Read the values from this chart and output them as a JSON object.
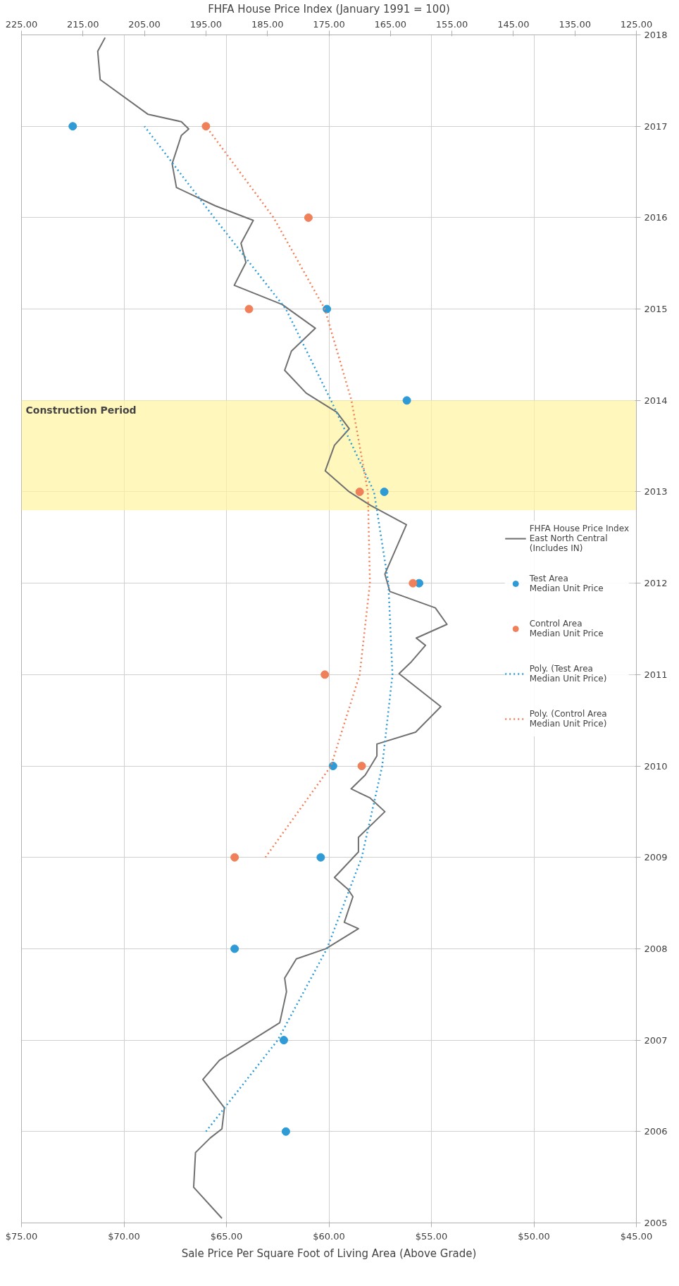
{
  "chart_data": {
    "type": "scatter",
    "orientation": "horizontal",
    "marker": "circle",
    "grid": true,
    "legend": "right",
    "xlabel": "Sale Price Per Square Foot of Living Area (Above Grade)",
    "x2label": "FHFA House Price Index (January 1991 = 100)",
    "xlim": [
      75,
      45
    ],
    "xticks": [
      {
        "value": 75,
        "label": "$75.00"
      },
      {
        "value": 70,
        "label": "$70.00"
      },
      {
        "value": 65,
        "label": "$65.00"
      },
      {
        "value": 60,
        "label": "$60.00"
      },
      {
        "value": 55,
        "label": "$55.00"
      },
      {
        "value": 50,
        "label": "$50.00"
      },
      {
        "value": 45,
        "label": "$45.00"
      }
    ],
    "x2lim": [
      225,
      125
    ],
    "x2ticks": [
      {
        "value": 225,
        "label": "225.00"
      },
      {
        "value": 215,
        "label": "215.00"
      },
      {
        "value": 205,
        "label": "205.00"
      },
      {
        "value": 195,
        "label": "195.00"
      },
      {
        "value": 185,
        "label": "185.00"
      },
      {
        "value": 175,
        "label": "175.00"
      },
      {
        "value": 165,
        "label": "165.00"
      },
      {
        "value": 155,
        "label": "155.00"
      },
      {
        "value": 145,
        "label": "145.00"
      },
      {
        "value": 135,
        "label": "135.00"
      },
      {
        "value": 125,
        "label": "125.00"
      }
    ],
    "ylim": [
      2005,
      2018
    ],
    "yticks": [
      2005,
      2006,
      2007,
      2008,
      2009,
      2010,
      2011,
      2012,
      2013,
      2014,
      2015,
      2016,
      2017,
      2018
    ],
    "bands": [
      {
        "axis": "y",
        "from": 2012.8,
        "to": 2014.0,
        "label": "Construction Period",
        "color": "#fff3a0"
      }
    ],
    "series": [
      {
        "name": "FHFA House Price Index\nEast North Central\n(Includes IN)",
        "type": "line",
        "marker": "none",
        "axis": "x2",
        "color": "#707070",
        "x": [
          2005.05,
          2005.39,
          2005.77,
          2005.93,
          2006.03,
          2006.26,
          2006.57,
          2006.78,
          2007.01,
          2007.19,
          2007.53,
          2007.68,
          2007.89,
          2008.0,
          2008.22,
          2008.29,
          2008.57,
          2008.65,
          2008.78,
          2009.06,
          2009.22,
          2009.5,
          2009.65,
          2009.75,
          2009.9,
          2010.11,
          2010.24,
          2010.37,
          2010.65,
          2011.01,
          2011.14,
          2011.32,
          2011.4,
          2011.55,
          2011.73,
          2011.91,
          2012.1,
          2012.64,
          2012.85,
          2013.0,
          2013.23,
          2013.51,
          2013.69,
          2013.87,
          2014.08,
          2014.33,
          2014.54,
          2014.79,
          2015.05,
          2015.26,
          2015.51,
          2015.72,
          2015.97,
          2016.13,
          2016.33,
          2016.59,
          2016.9,
          2016.97,
          2017.05,
          2017.13,
          2017.51,
          2017.82,
          2017.97
        ],
        "values": [
          192.4,
          197.0,
          196.7,
          194.3,
          192.4,
          192.0,
          195.5,
          192.8,
          187.3,
          183.0,
          181.9,
          182.2,
          180.3,
          175.5,
          170.2,
          172.5,
          171.1,
          171.9,
          174.1,
          170.2,
          170.2,
          165.9,
          168.3,
          171.4,
          169.1,
          167.2,
          167.2,
          160.9,
          156.8,
          163.6,
          161.6,
          159.3,
          160.8,
          155.8,
          157.7,
          165.1,
          165.9,
          162.4,
          168.2,
          171.7,
          175.6,
          174.1,
          171.7,
          173.7,
          178.7,
          182.2,
          181.1,
          177.2,
          182.6,
          190.4,
          188.5,
          189.3,
          187.3,
          193.5,
          199.8,
          200.5,
          199.0,
          197.8,
          199.0,
          204.4,
          212.2,
          212.6,
          211.4
        ]
      },
      {
        "name": "Test Area\nMedian Unit Price",
        "color": "#2e9bd6",
        "x": [
          2006,
          2007,
          2008,
          2009,
          2010,
          2012,
          2013,
          2014,
          2015,
          2017
        ],
        "values": [
          62.1,
          62.2,
          64.6,
          60.4,
          59.8,
          55.6,
          57.3,
          56.2,
          60.1,
          72.5
        ]
      },
      {
        "name": "Control Area\nMedian Unit Price",
        "color": "#f0805a",
        "x": [
          2009,
          2010,
          2011,
          2012,
          2013,
          2015,
          2016,
          2017
        ],
        "values": [
          64.6,
          58.4,
          60.2,
          55.9,
          58.5,
          63.9,
          61.0,
          66.0
        ]
      },
      {
        "name": "Poly. (Test Area\nMedian Unit Price)",
        "type": "line",
        "marker": "none",
        "line_style": "dotted",
        "color": "#2e9bd6",
        "x": [
          2006,
          2007,
          2008,
          2009,
          2010,
          2011,
          2012,
          2013,
          2014,
          2015,
          2016,
          2017
        ],
        "values": [
          66.0,
          62.5,
          60.1,
          58.4,
          57.4,
          56.9,
          57.1,
          57.8,
          59.9,
          62.1,
          65.6,
          69.0
        ]
      },
      {
        "name": "Poly. (Control Area\nMedian Unit Price)",
        "type": "line",
        "marker": "none",
        "line_style": "dotted",
        "color": "#f0805a",
        "x": [
          2009,
          2010,
          2011,
          2012,
          2013,
          2014,
          2015,
          2016,
          2017
        ],
        "values": [
          63.1,
          59.9,
          58.5,
          58.0,
          58.1,
          58.9,
          60.2,
          62.7,
          66.0
        ]
      }
    ]
  }
}
